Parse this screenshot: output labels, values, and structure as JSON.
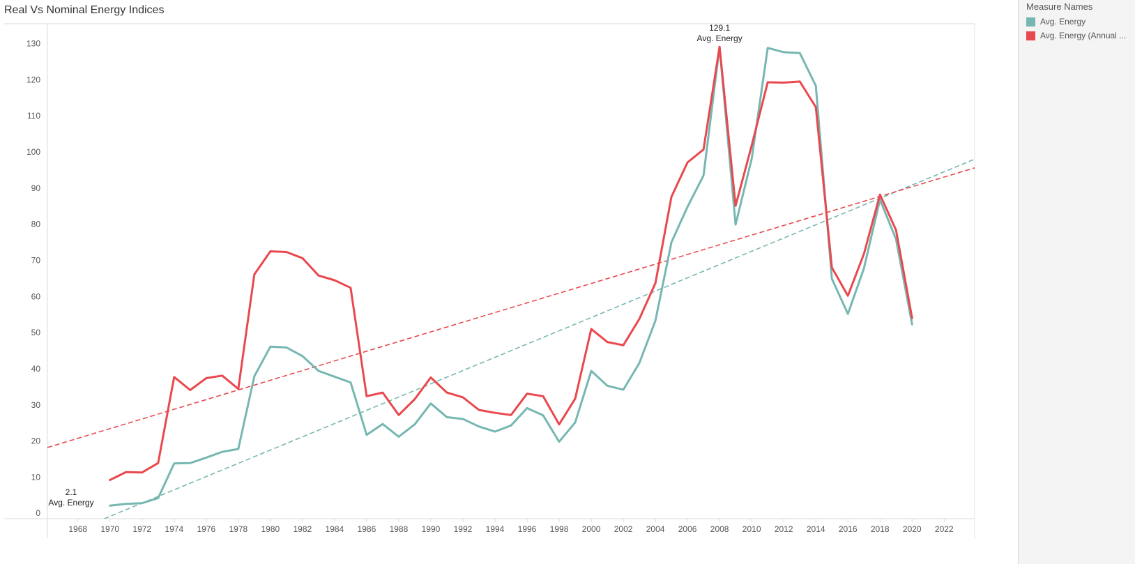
{
  "chart_data": {
    "type": "line",
    "title": "Real Vs Nominal Energy Indices",
    "xlim": [
      1966.1,
      2023.9
    ],
    "ylim": [
      -1.5,
      135.5
    ],
    "x_ticks": [
      "1968",
      "1970",
      "1972",
      "1974",
      "1976",
      "1978",
      "1980",
      "1982",
      "1984",
      "1986",
      "1988",
      "1990",
      "1992",
      "1994",
      "1996",
      "1998",
      "2000",
      "2002",
      "2004",
      "2006",
      "2008",
      "2010",
      "2012",
      "2014",
      "2016",
      "2018",
      "2020",
      "2022"
    ],
    "y_ticks": [
      "0",
      "10",
      "20",
      "30",
      "40",
      "50",
      "60",
      "70",
      "80",
      "90",
      "100",
      "110",
      "120",
      "130"
    ],
    "x": [
      1970,
      1971,
      1972,
      1973,
      1974,
      1975,
      1976,
      1977,
      1978,
      1979,
      1980,
      1981,
      1982,
      1983,
      1984,
      1985,
      1986,
      1987,
      1988,
      1989,
      1990,
      1991,
      1992,
      1993,
      1994,
      1995,
      1996,
      1997,
      1998,
      1999,
      2000,
      2001,
      2002,
      2003,
      2004,
      2005,
      2006,
      2007,
      2008,
      2009,
      2010,
      2011,
      2012,
      2013,
      2014,
      2015,
      2016,
      2017,
      2018,
      2019,
      2020
    ],
    "series": [
      {
        "name": "Avg. Energy",
        "color": "#76b7b2",
        "values": [
          2.1,
          2.6,
          2.8,
          4.2,
          13.8,
          13.9,
          15.4,
          17.0,
          17.8,
          37.9,
          46.1,
          45.9,
          43.5,
          39.4,
          37.8,
          36.2,
          21.7,
          24.7,
          21.2,
          24.6,
          30.4,
          26.6,
          26.1,
          24.0,
          22.6,
          24.3,
          29.1,
          27.1,
          19.8,
          25.1,
          39.4,
          35.3,
          34.2,
          41.6,
          53.3,
          75.0,
          84.8,
          93.5,
          129.1,
          79.9,
          98.1,
          128.8,
          127.6,
          127.4,
          118.3,
          64.9,
          55.2,
          67.8,
          86.8,
          75.9,
          52.3
        ]
      },
      {
        "name": "Avg. Energy (Annual ...",
        "color": "#e8484e",
        "values": [
          9.2,
          11.4,
          11.3,
          13.9,
          37.7,
          34.1,
          37.4,
          38.1,
          34.4,
          66.1,
          72.5,
          72.3,
          70.6,
          65.8,
          64.5,
          62.4,
          32.4,
          33.4,
          27.2,
          31.6,
          37.6,
          33.4,
          32.1,
          28.6,
          27.8,
          27.2,
          33.1,
          32.4,
          24.6,
          31.7,
          51.0,
          47.4,
          46.5,
          53.8,
          63.7,
          87.6,
          97.1,
          100.7,
          129.1,
          85.1,
          101.8,
          119.3,
          119.2,
          119.5,
          112.4,
          68.0,
          60.2,
          71.8,
          88.2,
          78.4,
          54.0
        ]
      }
    ],
    "trend_lines": [
      {
        "series": "Avg. Energy",
        "color": "#76b7b2",
        "x": [
          1966.1,
          2023.9
        ],
        "y": [
          -8.0,
          98.0
        ]
      },
      {
        "series": "Avg. Energy (Annual ...",
        "color": "#e8484e",
        "x": [
          1966.1,
          2023.9
        ],
        "y": [
          18.2,
          95.6
        ]
      }
    ],
    "annotations": [
      {
        "id": "annotation-min",
        "x": 1970,
        "y": 2.1,
        "value": "2.1",
        "label": "Avg. Energy"
      },
      {
        "id": "annotation-max",
        "x": 2008,
        "y": 129.1,
        "value": "129.1",
        "label": "Avg. Energy"
      }
    ],
    "grid": false,
    "legend": {
      "title": "Measure Names",
      "placement": "right",
      "items": [
        {
          "label": "Avg. Energy",
          "color": "#76b7b2"
        },
        {
          "label": "Avg. Energy (Annual ...",
          "color": "#e8484e"
        }
      ]
    }
  }
}
